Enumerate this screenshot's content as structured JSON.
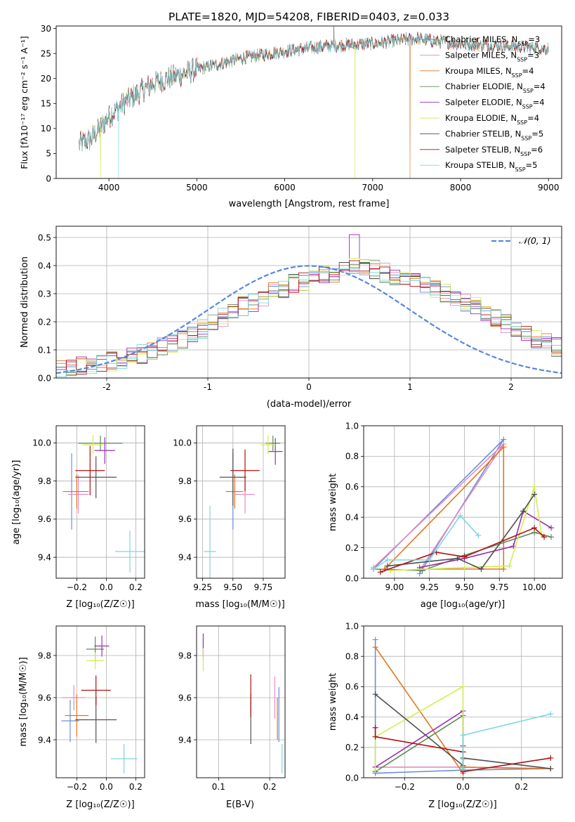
{
  "figure_title": "PLATE=1820, MJD=54208, FIBERID=0403, z=0.033",
  "colors": {
    "Chabrier MILES": "#6b8fd8",
    "Salpeter MILES": "#e98ac0",
    "Kroupa MILES": "#e0761e",
    "Chabrier ELODIE": "#5b8a5b",
    "Salpeter ELODIE": "#9b30b0",
    "Kroupa ELODIE": "#d4ec52",
    "Chabrier STELIB": "#505050",
    "Salpeter STELIB": "#b01010",
    "Kroupa STELIB": "#7dd8dc",
    "normal_curve": "#5588dd"
  },
  "chart_data": [
    {
      "id": "spectrum",
      "type": "line",
      "title": "PLATE=1820, MJD=54208, FIBERID=0403, z=0.033",
      "xlabel": "wavelength [Angstrom, rest frame]",
      "ylabel": "Flux [fλ10⁻¹⁷ erg cm⁻² s⁻¹ A⁻¹]",
      "xlim": [
        3400,
        9150
      ],
      "ylim": [
        0,
        30.5
      ],
      "xticks": [
        4000,
        5000,
        6000,
        7000,
        8000,
        9000
      ],
      "yticks": [
        0,
        5,
        10,
        15,
        20,
        25,
        30
      ],
      "grid": false,
      "legend_position": "right",
      "legend": [
        {
          "name": "Chabrier MILES",
          "nssp": "3"
        },
        {
          "name": "Salpeter MILES",
          "nssp": "3"
        },
        {
          "name": "Kroupa MILES",
          "nssp": "4"
        },
        {
          "name": "Chabrier ELODIE",
          "nssp": "4"
        },
        {
          "name": "Salpeter ELODIE",
          "nssp": "4"
        },
        {
          "name": "Kroupa ELODIE",
          "nssp": "4"
        },
        {
          "name": "Chabrier STELIB",
          "nssp": "5"
        },
        {
          "name": "Salpeter STELIB",
          "nssp": "6"
        },
        {
          "name": "Kroupa STELIB",
          "nssp": "5"
        }
      ],
      "legend_label_prefix": "N",
      "legend_label_sub": "SSP",
      "continuum": {
        "x": [
          3660,
          3800,
          3900,
          4000,
          4200,
          4500,
          5000,
          5500,
          6000,
          6500,
          7000,
          7500,
          7700,
          8000,
          8500,
          9000
        ],
        "y": [
          6.8,
          8,
          10,
          12.5,
          15.5,
          19,
          21.8,
          24,
          25.5,
          26.5,
          27,
          28,
          27.5,
          27,
          26.5,
          26
        ]
      },
      "sharp_features": [
        {
          "x": 4110,
          "y": 0,
          "series": "Kroupa STELIB"
        },
        {
          "x": 3905,
          "y": 0,
          "series": "Kroupa ELODIE"
        },
        {
          "x": 6800,
          "y": 0,
          "series": "Kroupa ELODIE"
        },
        {
          "x": 7425,
          "y": 0,
          "series": "Kroupa MILES"
        },
        {
          "x": 6560,
          "y": 31,
          "series": "Chabrier STELIB"
        }
      ]
    },
    {
      "id": "residuals",
      "type": "step",
      "xlabel": "(data-model)/error",
      "ylabel": "Normed distribution",
      "xlim": [
        -2.5,
        2.5
      ],
      "ylim": [
        0,
        0.54
      ],
      "xticks": [
        -2,
        -1,
        0,
        1,
        2
      ],
      "yticks": [
        0.0,
        0.1,
        0.2,
        0.3,
        0.4,
        0.5
      ],
      "grid": true,
      "legend_position": "top-right",
      "legend": [
        "𝒩(0, 1)"
      ],
      "bin_width": 0.1,
      "base_values": [
        0.03,
        0.035,
        0.04,
        0.045,
        0.055,
        0.06,
        0.065,
        0.075,
        0.085,
        0.095,
        0.11,
        0.125,
        0.14,
        0.16,
        0.175,
        0.195,
        0.215,
        0.235,
        0.255,
        0.27,
        0.29,
        0.305,
        0.32,
        0.335,
        0.345,
        0.355,
        0.365,
        0.375,
        0.385,
        0.4,
        0.4,
        0.385,
        0.375,
        0.365,
        0.355,
        0.345,
        0.335,
        0.32,
        0.305,
        0.29,
        0.27,
        0.255,
        0.235,
        0.215,
        0.195,
        0.175,
        0.16,
        0.14,
        0.125,
        0.11,
        0.095,
        0.085,
        0.075,
        0.065,
        0.06,
        0.055,
        0.045,
        0.04,
        0.035,
        0.03
      ]
    },
    {
      "id": "age_vs_Z",
      "type": "errorbar",
      "xlabel": "Z [log₁₀(Z/Z☉)]",
      "ylabel": "age  [log₁₀(age/yr)]",
      "xlim": [
        -0.34,
        0.26
      ],
      "ylim": [
        9.29,
        10.09
      ],
      "xticks": [
        -0.2,
        0.0,
        0.2
      ],
      "xticklabels": [
        "−0.2",
        "0.0",
        "0.2"
      ],
      "yticks": [
        9.4,
        9.6,
        9.8,
        10.0
      ],
      "grid": true,
      "points": [
        {
          "series": "Chabrier MILES",
          "x": -0.235,
          "y": 9.745,
          "xerr": 0.06,
          "yerr": 0.2
        },
        {
          "series": "Salpeter MILES",
          "x": -0.19,
          "y": 9.73,
          "xerr": 0.07,
          "yerr": 0.1
        },
        {
          "series": "Kroupa MILES",
          "x": -0.2,
          "y": 9.745,
          "xerr": 0.08,
          "yerr": 0.09
        },
        {
          "series": "Chabrier ELODIE",
          "x": -0.04,
          "y": 9.998,
          "xerr": 0.15,
          "yerr": 0.04
        },
        {
          "series": "Salpeter ELODIE",
          "x": -0.01,
          "y": 9.96,
          "xerr": 0.07,
          "yerr": 0.07
        },
        {
          "series": "Kroupa ELODIE",
          "x": -0.09,
          "y": 9.99,
          "xerr": 0.07,
          "yerr": 0.05
        },
        {
          "series": "Chabrier STELIB",
          "x": -0.07,
          "y": 9.82,
          "xerr": 0.14,
          "yerr": 0.11
        },
        {
          "series": "Salpeter STELIB",
          "x": -0.11,
          "y": 9.855,
          "xerr": 0.1,
          "yerr": 0.13
        },
        {
          "series": "Kroupa STELIB",
          "x": 0.16,
          "y": 9.43,
          "xerr": 0.1,
          "yerr": 0.11
        }
      ]
    },
    {
      "id": "age_vs_mass",
      "type": "errorbar",
      "xlabel": "mass [log₁₀(M/M☉)]",
      "ylabel": "",
      "xlim": [
        9.2,
        9.93
      ],
      "ylim": [
        9.29,
        10.09
      ],
      "xticks": [
        9.25,
        9.5,
        9.75
      ],
      "yticks": [
        9.4,
        9.6,
        9.8,
        10.0
      ],
      "grid": true,
      "points": [
        {
          "series": "Chabrier MILES",
          "x": 9.5,
          "y": 9.745,
          "xerr": 0.06,
          "yerr": 0.2
        },
        {
          "series": "Salpeter MILES",
          "x": 9.6,
          "y": 9.73,
          "xerr": 0.08,
          "yerr": 0.1
        },
        {
          "series": "Kroupa MILES",
          "x": 9.515,
          "y": 9.745,
          "xerr": 0.07,
          "yerr": 0.09
        },
        {
          "series": "Chabrier ELODIE",
          "x": 9.83,
          "y": 9.998,
          "xerr": 0.06,
          "yerr": 0.04
        },
        {
          "series": "Salpeter ELODIE",
          "x": 9.85,
          "y": 9.955,
          "xerr": 0.06,
          "yerr": 0.07
        },
        {
          "series": "Kroupa ELODIE",
          "x": 9.79,
          "y": 9.99,
          "xerr": 0.06,
          "yerr": 0.05
        },
        {
          "series": "Chabrier STELIB",
          "x": 9.5,
          "y": 9.82,
          "xerr": 0.11,
          "yerr": 0.15
        },
        {
          "series": "Salpeter STELIB",
          "x": 9.6,
          "y": 9.855,
          "xerr": 0.12,
          "yerr": 0.11
        },
        {
          "series": "Kroupa STELIB",
          "x": 9.31,
          "y": 9.43,
          "xerr": 0.05,
          "yerr": 0.24
        }
      ]
    },
    {
      "id": "weight_vs_age",
      "type": "line",
      "xlabel": "age  [log₁₀(age/yr)]",
      "ylabel": "mass weight",
      "xlim": [
        8.78,
        10.2
      ],
      "ylim": [
        0.0,
        1.0
      ],
      "xticks": [
        9.0,
        9.25,
        9.5,
        9.75,
        10.0
      ],
      "xticklabels": [
        "9.00",
        "9.25",
        "9.50",
        "9.75",
        "10.00"
      ],
      "yticks": [
        0.0,
        0.2,
        0.4,
        0.6,
        0.8,
        1.0
      ],
      "grid": true,
      "series": [
        {
          "name": "Chabrier MILES",
          "x": [
            9.18,
            9.78,
            8.85
          ],
          "y": [
            0.03,
            0.91,
            0.06
          ]
        },
        {
          "name": "Salpeter MILES",
          "x": [
            8.85,
            9.78,
            9.18
          ],
          "y": [
            0.07,
            0.88,
            0.05
          ]
        },
        {
          "name": "Kroupa MILES",
          "x": [
            8.93,
            9.78,
            9.78,
            9.18
          ],
          "y": [
            0.06,
            0.86,
            0.06,
            0.06
          ]
        },
        {
          "name": "Chabrier ELODIE",
          "x": [
            8.85,
            9.2,
            9.5,
            10.0,
            10.12
          ],
          "y": [
            0.06,
            0.05,
            0.15,
            0.3,
            0.27
          ]
        },
        {
          "name": "Salpeter ELODIE",
          "x": [
            9.18,
            9.5,
            9.85,
            9.92,
            10.12
          ],
          "y": [
            0.07,
            0.13,
            0.21,
            0.44,
            0.33
          ]
        },
        {
          "name": "Kroupa ELODIE",
          "x": [
            8.97,
            9.5,
            9.82,
            10.0,
            10.05
          ],
          "y": [
            0.05,
            0.07,
            0.08,
            0.6,
            0.29
          ]
        },
        {
          "name": "Chabrier STELIB",
          "x": [
            8.95,
            9.45,
            9.62,
            9.92,
            10.0
          ],
          "y": [
            0.08,
            0.13,
            0.06,
            0.44,
            0.55
          ]
        },
        {
          "name": "Salpeter STELIB",
          "x": [
            8.9,
            9.3,
            9.5,
            10.0,
            10.07
          ],
          "y": [
            0.04,
            0.17,
            0.14,
            0.33,
            0.27
          ]
        },
        {
          "name": "Kroupa STELIB",
          "x": [
            8.85,
            8.95,
            9.25,
            9.47,
            9.6
          ],
          "y": [
            0.06,
            0.12,
            0.12,
            0.41,
            0.28
          ]
        }
      ]
    },
    {
      "id": "mass_vs_Z",
      "type": "errorbar",
      "xlabel": "Z [log₁₀(Z/Z☉)]",
      "ylabel": "mass [log₁₀(M/M☉)]",
      "xlim": [
        -0.34,
        0.26
      ],
      "ylim": [
        9.22,
        9.94
      ],
      "xticks": [
        -0.2,
        0.0,
        0.2
      ],
      "xticklabels": [
        "−0.2",
        "0.0",
        "0.2"
      ],
      "yticks": [
        9.4,
        9.6,
        9.8
      ],
      "grid": true,
      "points": [
        {
          "series": "Chabrier MILES",
          "x": -0.245,
          "y": 9.49,
          "xerr": 0.06,
          "yerr": 0.1
        },
        {
          "series": "Salpeter MILES",
          "x": -0.22,
          "y": 9.6,
          "xerr": 0.08,
          "yerr": 0.06
        },
        {
          "series": "Kroupa MILES",
          "x": -0.2,
          "y": 9.515,
          "xerr": 0.08,
          "yerr": 0.1
        },
        {
          "series": "Chabrier ELODIE",
          "x": -0.075,
          "y": 9.83,
          "xerr": 0.06,
          "yerr": 0.06
        },
        {
          "series": "Salpeter ELODIE",
          "x": -0.03,
          "y": 9.845,
          "xerr": 0.05,
          "yerr": 0.05
        },
        {
          "series": "Kroupa ELODIE",
          "x": -0.075,
          "y": 9.775,
          "xerr": 0.06,
          "yerr": 0.04
        },
        {
          "series": "Chabrier STELIB",
          "x": -0.07,
          "y": 9.495,
          "xerr": 0.14,
          "yerr": 0.11
        },
        {
          "series": "Salpeter STELIB",
          "x": -0.07,
          "y": 9.635,
          "xerr": 0.1,
          "yerr": 0.07
        },
        {
          "series": "Kroupa STELIB",
          "x": 0.12,
          "y": 9.31,
          "xerr": 0.09,
          "yerr": 0.07
        }
      ]
    },
    {
      "id": "mass_vs_ebv",
      "type": "errorbar",
      "xlabel": "E(B-V)",
      "ylabel": "",
      "xlim": [
        0.057,
        0.23
      ],
      "ylim": [
        9.22,
        9.94
      ],
      "xticks": [
        0.1,
        0.2
      ],
      "xticklabels": [
        "0.1",
        "0.2"
      ],
      "yticks": [
        9.4,
        9.6,
        9.8
      ],
      "grid": true,
      "points": [
        {
          "series": "Chabrier MILES",
          "x": 0.218,
          "y": 9.52,
          "xerr": 0.0,
          "yerr": 0.13
        },
        {
          "series": "Salpeter MILES",
          "x": 0.21,
          "y": 9.6,
          "xerr": 0.0,
          "yerr": 0.1
        },
        {
          "series": "Kroupa MILES",
          "x": 0.215,
          "y": 9.5,
          "xerr": 0.0,
          "yerr": 0.1
        },
        {
          "series": "Chabrier ELODIE",
          "x": 0.07,
          "y": 9.83,
          "xerr": 0.0,
          "yerr": 0.05
        },
        {
          "series": "Salpeter ELODIE",
          "x": 0.07,
          "y": 9.85,
          "xerr": 0.0,
          "yerr": 0.055
        },
        {
          "series": "Kroupa ELODIE",
          "x": 0.07,
          "y": 9.78,
          "xerr": 0.0,
          "yerr": 0.055
        },
        {
          "series": "Chabrier STELIB",
          "x": 0.163,
          "y": 9.5,
          "xerr": 0.0,
          "yerr": 0.12
        },
        {
          "series": "Salpeter STELIB",
          "x": 0.163,
          "y": 9.61,
          "xerr": 0.0,
          "yerr": 0.1
        },
        {
          "series": "Kroupa STELIB",
          "x": 0.224,
          "y": 9.31,
          "xerr": 0.0,
          "yerr": 0.07
        }
      ]
    },
    {
      "id": "weight_vs_Z",
      "type": "line",
      "xlabel": "Z [log₁₀(Z/Z☉)]",
      "ylabel": "mass weight",
      "xlim": [
        -0.34,
        0.34
      ],
      "ylim": [
        0.0,
        1.0
      ],
      "xticks": [
        -0.2,
        0.0,
        0.2
      ],
      "xticklabels": [
        "−0.2",
        "0.0",
        "0.2"
      ],
      "yticks": [
        0.0,
        0.2,
        0.4,
        0.6,
        0.8,
        1.0
      ],
      "grid": true,
      "series": [
        {
          "name": "Chabrier MILES",
          "x": [
            -0.3,
            -0.3,
            0.0,
            0.3
          ],
          "y": [
            0.91,
            0.03,
            0.05,
            0.06
          ]
        },
        {
          "name": "Salpeter MILES",
          "x": [
            -0.3,
            0.0,
            0.3
          ],
          "y": [
            0.07,
            0.07,
            0.06
          ]
        },
        {
          "name": "Kroupa MILES",
          "x": [
            -0.3,
            0.0,
            0.0,
            0.3
          ],
          "y": [
            0.86,
            0.03,
            0.07,
            0.06
          ]
        },
        {
          "name": "Chabrier ELODIE",
          "x": [
            -0.3,
            0.0,
            0.0
          ],
          "y": [
            0.04,
            0.41,
            0.06
          ]
        },
        {
          "name": "Salpeter ELODIE",
          "x": [
            -0.3,
            0.0,
            0.0
          ],
          "y": [
            0.07,
            0.44,
            0.21
          ]
        },
        {
          "name": "Kroupa ELODIE",
          "x": [
            -0.3,
            -0.3,
            0.0,
            0.0
          ],
          "y": [
            0.05,
            0.27,
            0.6,
            0.08
          ]
        },
        {
          "name": "Chabrier STELIB",
          "x": [
            -0.3,
            0.0,
            0.0,
            0.3
          ],
          "y": [
            0.55,
            0.08,
            0.13,
            0.06
          ]
        },
        {
          "name": "Salpeter STELIB",
          "x": [
            -0.3,
            -0.3,
            0.0,
            0.0,
            0.3
          ],
          "y": [
            0.33,
            0.27,
            0.17,
            0.04,
            0.13
          ]
        },
        {
          "name": "Kroupa STELIB",
          "x": [
            0.0,
            0.0,
            0.0,
            0.3
          ],
          "y": [
            0.06,
            0.12,
            0.28,
            0.42
          ]
        }
      ]
    }
  ]
}
